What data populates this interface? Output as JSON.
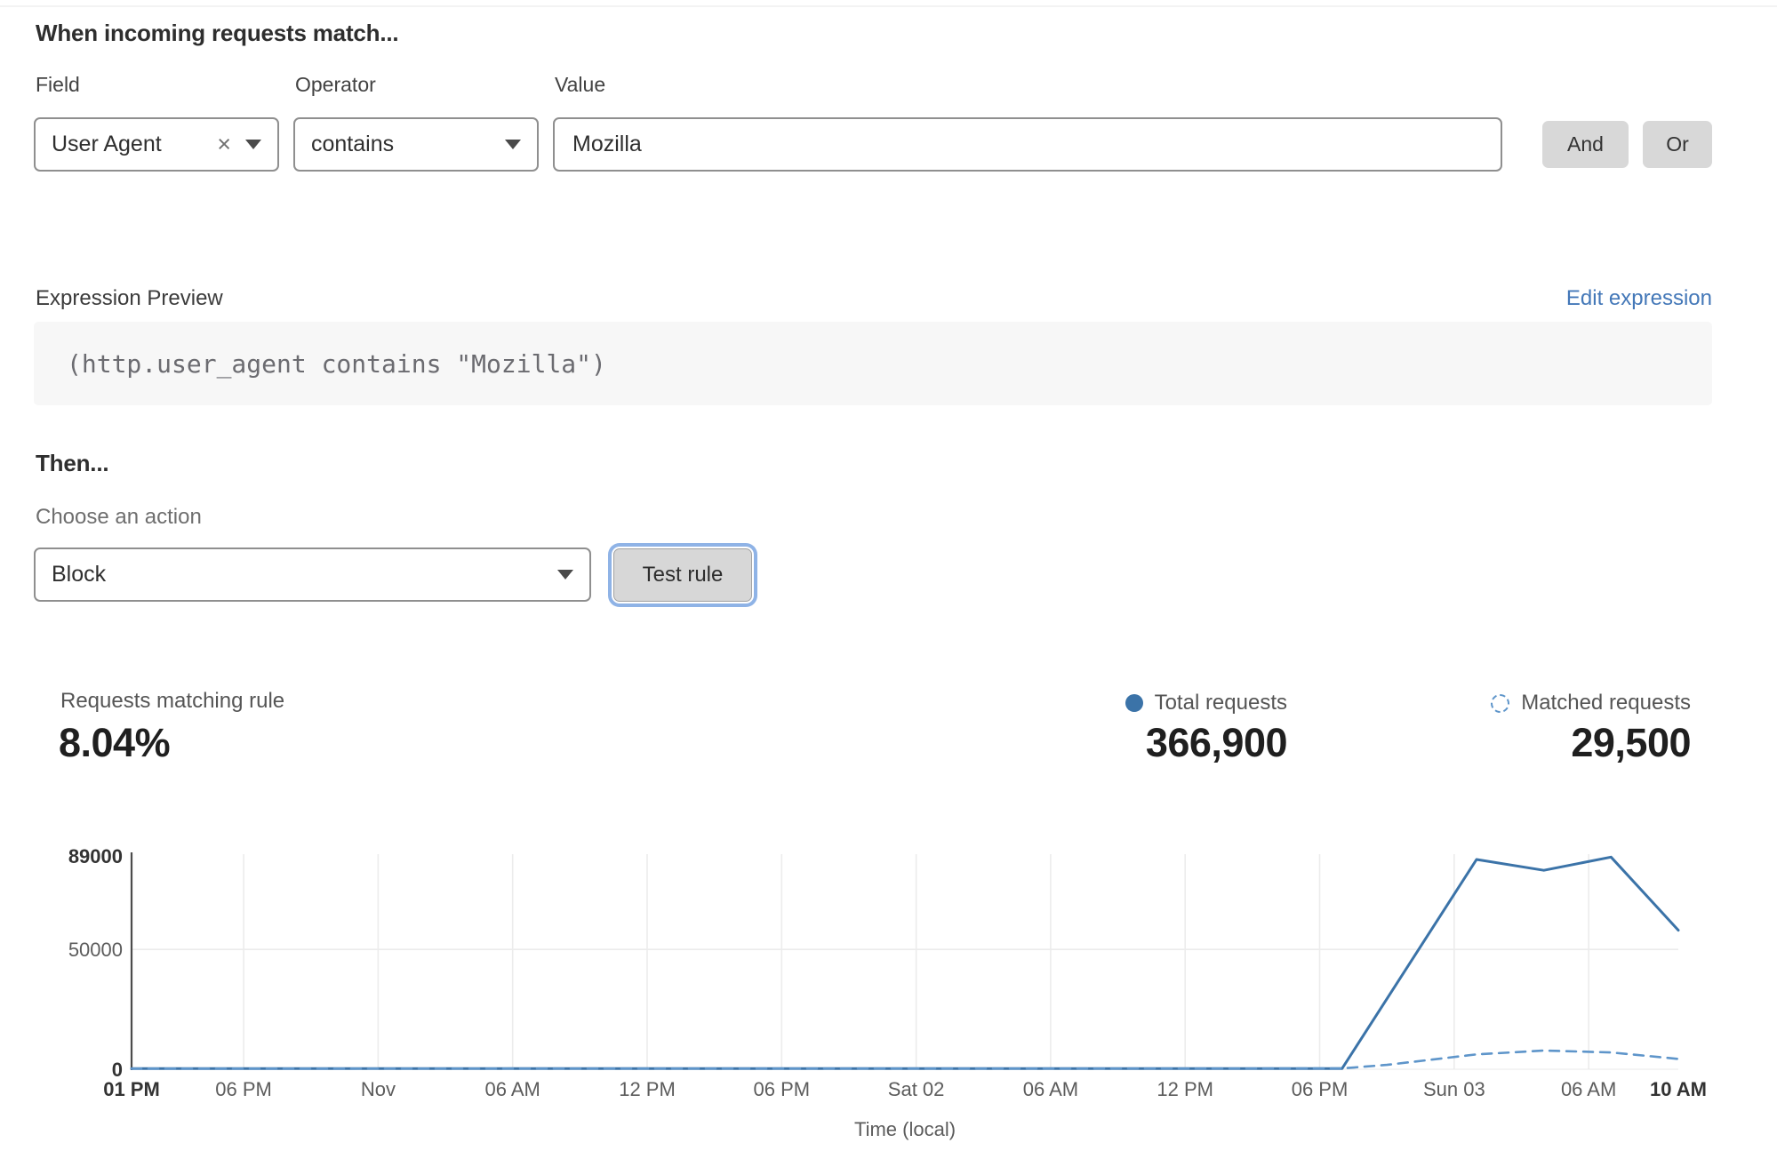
{
  "rule_builder": {
    "heading": "When incoming requests match...",
    "field": {
      "label": "Field",
      "value": "User Agent",
      "clear_icon": "×"
    },
    "operator": {
      "label": "Operator",
      "value": "contains"
    },
    "value": {
      "label": "Value",
      "value": "Mozilla"
    },
    "and_label": "And",
    "or_label": "Or"
  },
  "expression": {
    "label": "Expression Preview",
    "edit_link": "Edit expression",
    "code": "(http.user_agent contains \"Mozilla\")"
  },
  "action": {
    "heading": "Then...",
    "label": "Choose an action",
    "value": "Block",
    "test_button": "Test rule"
  },
  "stats": {
    "matching": {
      "label": "Requests matching rule",
      "value": "8.04%"
    },
    "total": {
      "label": "Total requests",
      "value": "366,900"
    },
    "matched": {
      "label": "Matched requests",
      "value": "29,500"
    }
  },
  "colors": {
    "chart_blue": "#3b73a8",
    "chart_blue_light": "#5e95ca",
    "link_blue": "#4478b8",
    "focus_ring": "#8fb3e6",
    "grid": "#ececec",
    "axis": "#4c4c4c",
    "tick_text": "#5c5c5c",
    "tick_text_bold": "#333333"
  },
  "chart_data": {
    "type": "line",
    "title": "",
    "xlabel": "Time (local)",
    "ylabel": "",
    "ylim": [
      0,
      89000
    ],
    "x_range_hours": [
      0,
      69
    ],
    "grid": true,
    "legend_position": "top-right",
    "y_ticks": [
      {
        "v": 0,
        "label": "0",
        "bold": true
      },
      {
        "v": 50000,
        "label": "50000",
        "bold": false
      },
      {
        "v": 89000,
        "label": "89000",
        "bold": true
      }
    ],
    "x_ticks": [
      {
        "h": 0,
        "label": "01 PM",
        "bold": true
      },
      {
        "h": 5,
        "label": "06 PM",
        "bold": false
      },
      {
        "h": 11,
        "label": "Nov",
        "bold": false
      },
      {
        "h": 17,
        "label": "06 AM",
        "bold": false
      },
      {
        "h": 23,
        "label": "12 PM",
        "bold": false
      },
      {
        "h": 29,
        "label": "06 PM",
        "bold": false
      },
      {
        "h": 35,
        "label": "Sat 02",
        "bold": false
      },
      {
        "h": 41,
        "label": "06 AM",
        "bold": false
      },
      {
        "h": 47,
        "label": "12 PM",
        "bold": false
      },
      {
        "h": 53,
        "label": "06 PM",
        "bold": false
      },
      {
        "h": 59,
        "label": "Sun 03",
        "bold": false
      },
      {
        "h": 65,
        "label": "06 AM",
        "bold": false
      },
      {
        "h": 69,
        "label": "10 AM",
        "bold": true
      }
    ],
    "series": [
      {
        "name": "Total requests",
        "style": "solid",
        "points": [
          [
            0,
            250
          ],
          [
            54,
            250
          ],
          [
            60,
            87500
          ],
          [
            63,
            83000
          ],
          [
            66,
            88500
          ],
          [
            69,
            58000
          ]
        ]
      },
      {
        "name": "Matched requests",
        "style": "dashed",
        "points": [
          [
            0,
            250
          ],
          [
            54,
            350
          ],
          [
            56,
            1800
          ],
          [
            60,
            6200
          ],
          [
            63,
            7800
          ],
          [
            66,
            7000
          ],
          [
            69,
            4300
          ]
        ]
      }
    ]
  }
}
